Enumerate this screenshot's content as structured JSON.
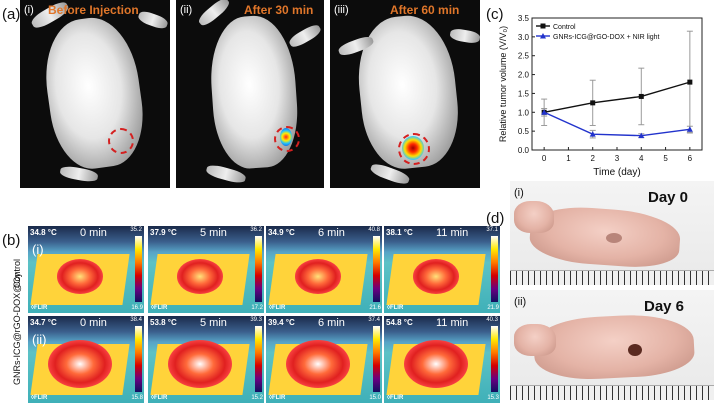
{
  "panel_a": {
    "letter": "(a)",
    "frames": [
      {
        "roman": "(i)",
        "title": "Before Injection"
      },
      {
        "roman": "(ii)",
        "title": "After 30 min"
      },
      {
        "roman": "(iii)",
        "title": "After 60 min"
      }
    ]
  },
  "panel_b": {
    "letter": "(b)",
    "rows": [
      {
        "roman": "(i)",
        "label": "Control",
        "cells": [
          {
            "temp": "34.8 °C",
            "time": "0 min",
            "hi": "35.2",
            "lo": "16.9"
          },
          {
            "temp": "37.9 °C",
            "time": "5 min",
            "hi": "36.2",
            "lo": "17.2"
          },
          {
            "temp": "34.9 °C",
            "time": "6 min",
            "hi": "40.8",
            "lo": "21.6"
          },
          {
            "temp": "38.1 °C",
            "time": "11 min",
            "hi": "37.1",
            "lo": "21.9"
          }
        ]
      },
      {
        "roman": "(ii)",
        "label": "GNRs-ICG@rGO-DOX@Cy",
        "cells": [
          {
            "temp": "34.7 °C",
            "time": "0 min",
            "hi": "38.4",
            "lo": "15.8"
          },
          {
            "temp": "53.8 °C",
            "time": "5 min",
            "hi": "39.3",
            "lo": "15.2"
          },
          {
            "temp": "39.4 °C",
            "time": "6 min",
            "hi": "37.4",
            "lo": "15.0"
          },
          {
            "temp": "54.8 °C",
            "time": "11 min",
            "hi": "40.3",
            "lo": "15.3"
          }
        ]
      }
    ],
    "flir": "◊FLIR"
  },
  "panel_c": {
    "letter": "(c)"
  },
  "panel_d": {
    "letter": "(d)",
    "photos": [
      {
        "roman": "(i)",
        "day": "Day 0"
      },
      {
        "roman": "(ii)",
        "day": "Day 6"
      }
    ]
  },
  "chart_data": {
    "type": "line",
    "xlabel": "Time (day)",
    "ylabel": "Relative tumor volume (V/V₀)",
    "xlim": [
      -0.5,
      6.5
    ],
    "ylim": [
      0,
      3.5
    ],
    "xticks": [
      0,
      1,
      2,
      3,
      4,
      5,
      6
    ],
    "yticks": [
      0.0,
      0.5,
      1.0,
      1.5,
      2.0,
      2.5,
      3.0,
      3.5
    ],
    "ytick_labels": [
      "0.0",
      "0.5",
      "1.0",
      "1.5",
      "2.0",
      "2.5",
      "3.0",
      "3.5"
    ],
    "legend_position": "top-left",
    "series": [
      {
        "name": "Control",
        "color": "#111111",
        "marker": "square",
        "x": [
          0,
          2,
          4,
          6
        ],
        "y": [
          1.0,
          1.25,
          1.42,
          1.8
        ],
        "err": [
          0.35,
          0.6,
          0.75,
          1.35
        ]
      },
      {
        "name": "GNRs-ICG@rGO-DOX + NIR light",
        "color": "#2233cc",
        "marker": "triangle",
        "x": [
          0,
          2,
          4,
          6
        ],
        "y": [
          1.0,
          0.42,
          0.38,
          0.55
        ],
        "err": [
          0.1,
          0.1,
          0.05,
          0.08
        ]
      }
    ]
  }
}
